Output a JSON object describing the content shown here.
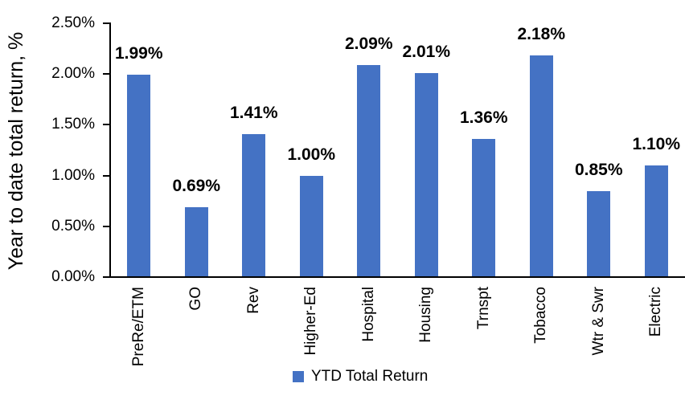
{
  "chart_data": {
    "type": "bar",
    "title": "",
    "xlabel": "",
    "ylabel": "Year to date total return, %",
    "categories": [
      "PreRe/ETM",
      "GO",
      "Rev",
      "Higher-Ed",
      "Hospital",
      "Housing",
      "Trnspt",
      "Tobacco",
      "Wtr & Swr",
      "Electric"
    ],
    "values": [
      1.99,
      0.69,
      1.41,
      1.0,
      2.09,
      2.01,
      1.36,
      2.18,
      0.85,
      1.1
    ],
    "data_labels": [
      "1.99%",
      "0.69%",
      "1.41%",
      "1.00%",
      "2.09%",
      "2.01%",
      "1.36%",
      "2.18%",
      "0.85%",
      "1.10%"
    ],
    "y_ticks": [
      {
        "label": "2.50%",
        "value": 2.5
      },
      {
        "label": "2.00%",
        "value": 2.0
      },
      {
        "label": "1.50%",
        "value": 1.5
      },
      {
        "label": "1.00%",
        "value": 1.0
      },
      {
        "label": "0.50%",
        "value": 0.5
      },
      {
        "label": "0.00%",
        "value": 0.0
      }
    ],
    "ylim": [
      0,
      2.5
    ],
    "grid": false,
    "legend_position": "bottom",
    "legend": [
      {
        "label": "YTD Total Return",
        "color": "#4472C4"
      }
    ],
    "bar_color": "#4472C4",
    "axis_color": "#000000",
    "text_color": "#000000"
  }
}
